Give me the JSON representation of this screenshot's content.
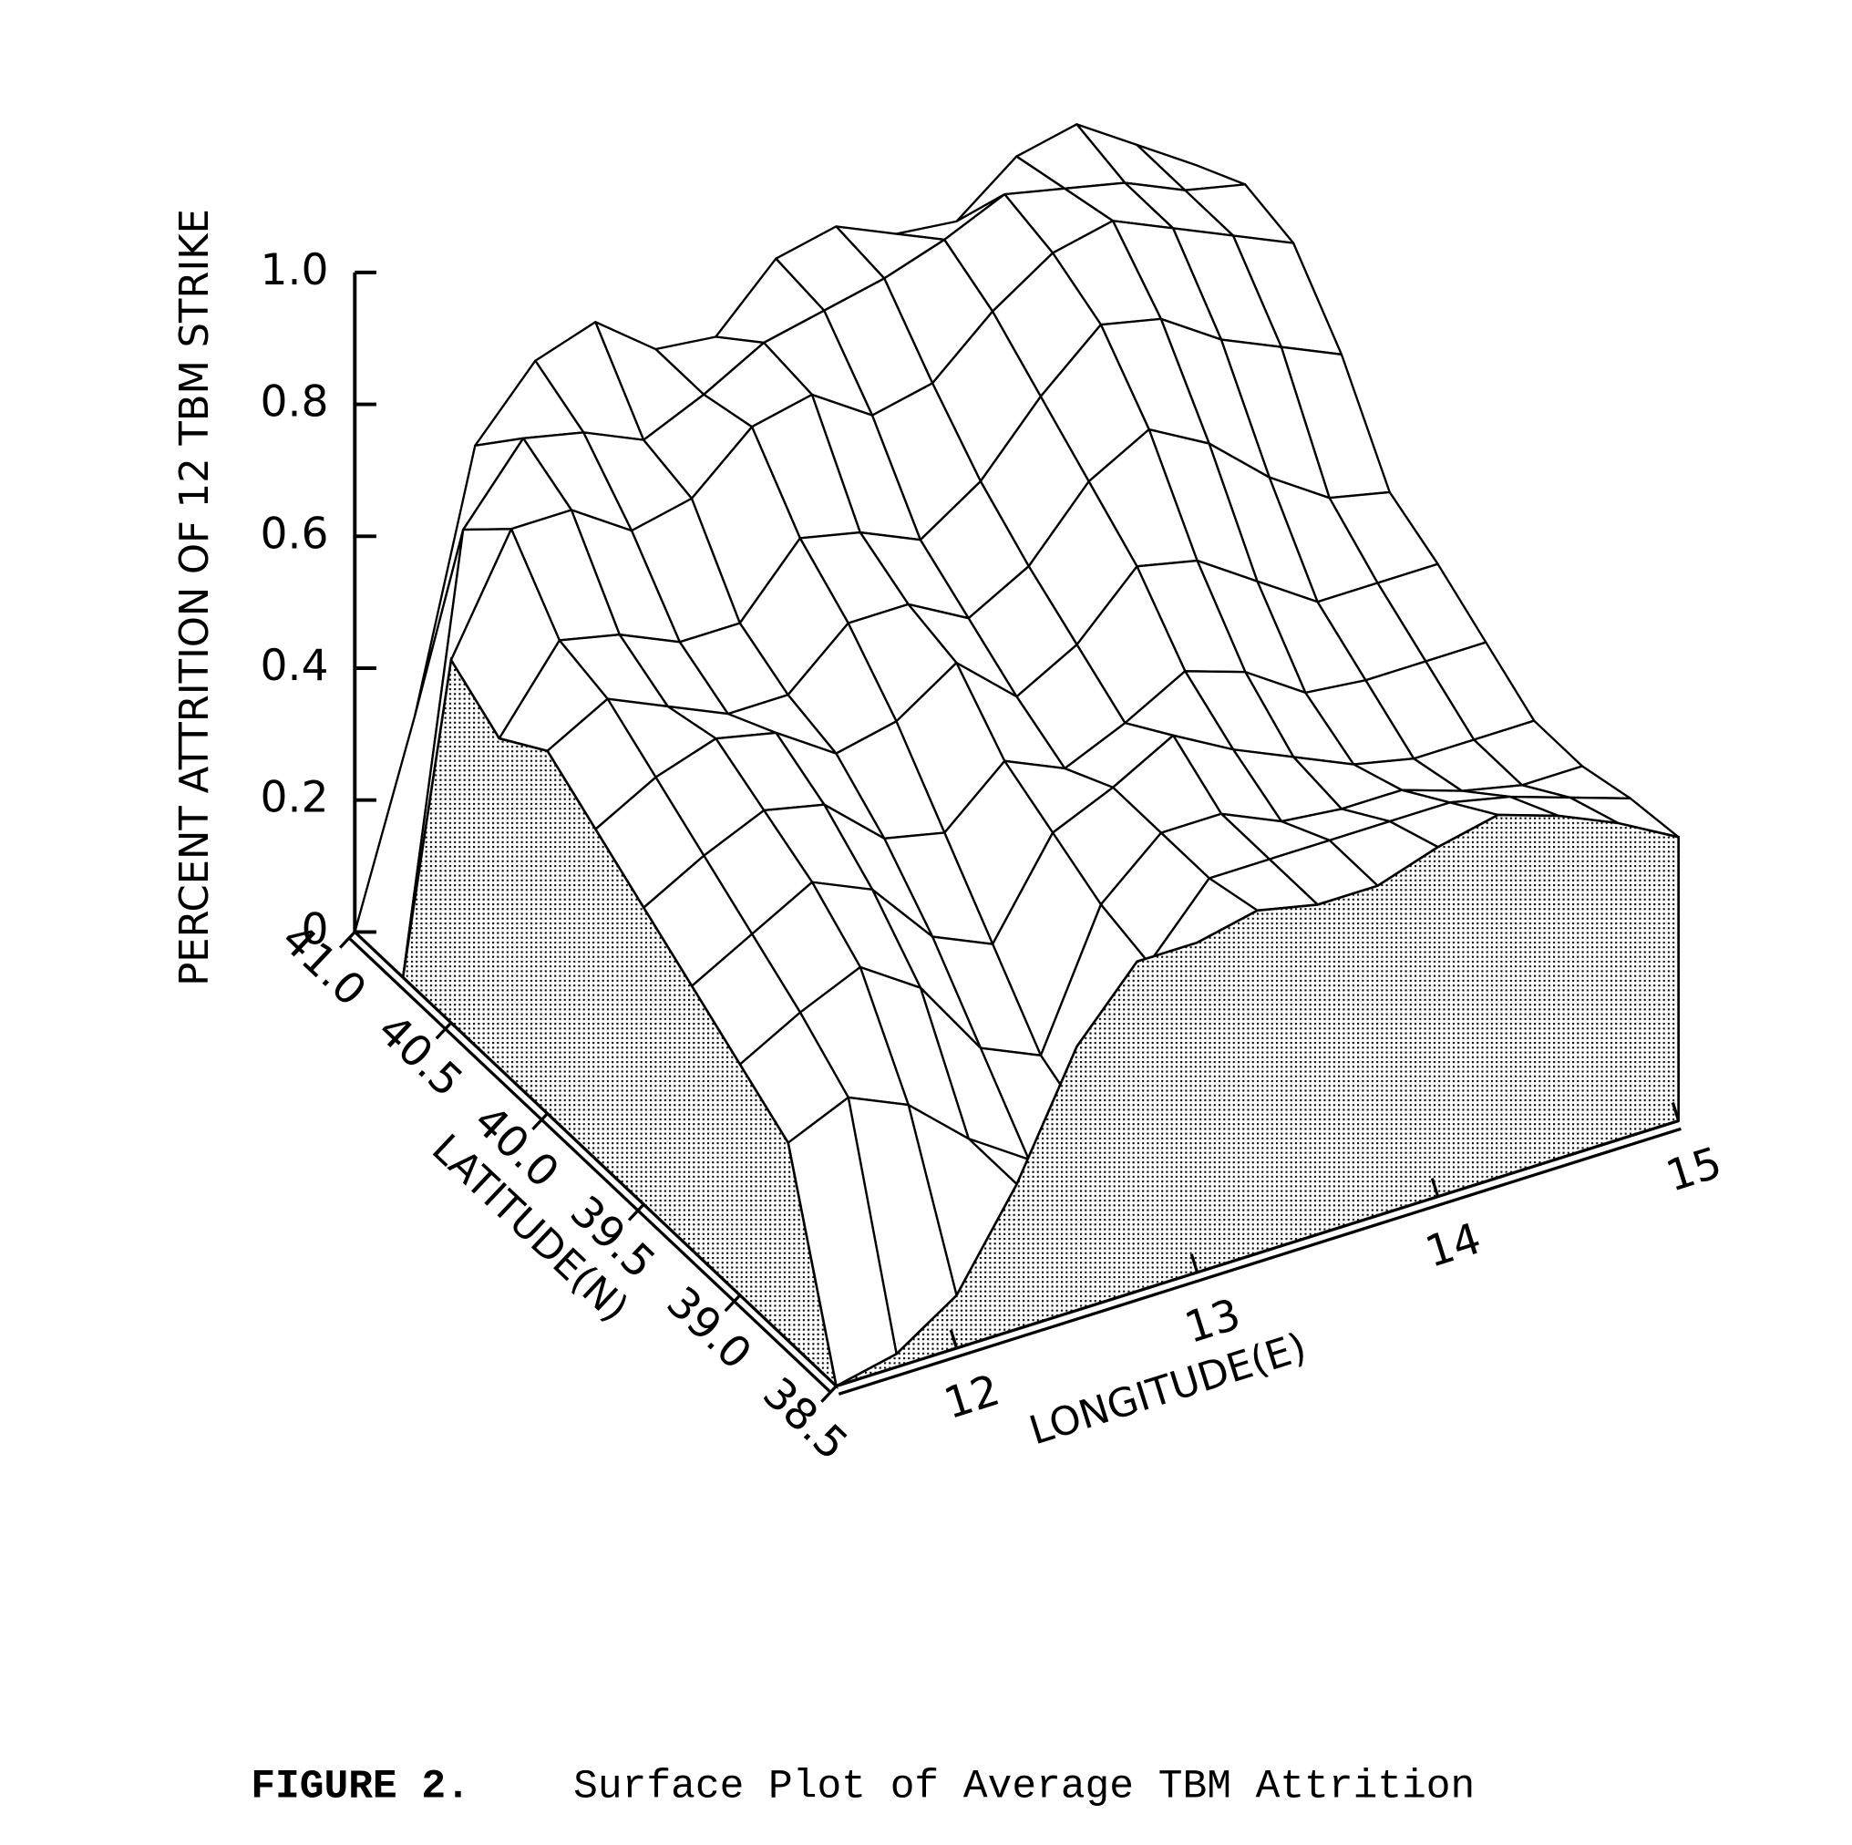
{
  "chart_data": {
    "type": "surface",
    "zlabel": "PERCENT ATTRITION OF 12 TBM STRIKE",
    "ylabel": "LATITUDE(N)",
    "xlabel": "LONGITUDE(E)",
    "caption_label": "FIGURE 2.",
    "caption": "Surface Plot of Average TBM Attrition",
    "zlim": [
      0,
      1
    ],
    "zticks": [
      0,
      0.2,
      0.4,
      0.6,
      0.8,
      {
        "value": 1,
        "label": "1.0"
      }
    ],
    "ylim": [
      38.5,
      41
    ],
    "yticks": [
      {
        "value": 41,
        "label": "41.0"
      },
      40.5,
      {
        "value": 40,
        "label": "40.0"
      },
      39.5,
      {
        "value": 39,
        "label": "39.0"
      },
      38.5
    ],
    "xlim": [
      11.5,
      15
    ],
    "xticks": [
      12,
      13,
      14,
      15
    ],
    "y": [
      41,
      40.75,
      40.5,
      40.25,
      40,
      39.75,
      39.5,
      39.25,
      39,
      38.75,
      38.5
    ],
    "x": [
      11.5,
      11.75,
      12,
      12.25,
      12.5,
      12.75,
      13,
      13.25,
      13.5,
      13.75,
      14,
      14.25,
      14.5,
      14.75,
      15
    ],
    "values": [
      [
        0,
        0.3,
        0.68,
        0.78,
        0.81,
        0.74,
        0.73,
        0.82,
        0.84,
        0.8,
        0.79,
        0.86,
        0.88,
        0.82,
        0.76
      ],
      [
        0,
        0.65,
        0.76,
        0.74,
        0.7,
        0.74,
        0.79,
        0.81,
        0.83,
        0.86,
        0.9,
        0.88,
        0.86,
        0.82,
        0.8
      ],
      [
        0.55,
        0.72,
        0.72,
        0.66,
        0.68,
        0.76,
        0.78,
        0.72,
        0.74,
        0.82,
        0.88,
        0.9,
        0.86,
        0.82,
        0.78
      ],
      [
        0.5,
        0.62,
        0.6,
        0.56,
        0.56,
        0.66,
        0.64,
        0.6,
        0.66,
        0.76,
        0.84,
        0.82,
        0.76,
        0.72,
        0.68
      ],
      [
        0.55,
        0.6,
        0.56,
        0.52,
        0.52,
        0.6,
        0.6,
        0.55,
        0.6,
        0.7,
        0.75,
        0.7,
        0.62,
        0.56,
        0.54
      ],
      [
        0.5,
        0.55,
        0.58,
        0.56,
        0.5,
        0.52,
        0.58,
        0.5,
        0.55,
        0.64,
        0.62,
        0.56,
        0.5,
        0.5,
        0.5
      ],
      [
        0.45,
        0.5,
        0.54,
        0.52,
        0.44,
        0.42,
        0.5,
        0.46,
        0.5,
        0.55,
        0.52,
        0.46,
        0.45,
        0.45,
        0.45
      ],
      [
        0.4,
        0.45,
        0.5,
        0.46,
        0.36,
        0.32,
        0.46,
        0.5,
        0.55,
        0.5,
        0.46,
        0.42,
        0.4,
        0.4,
        0.4
      ],
      [
        0.35,
        0.4,
        0.44,
        0.38,
        0.26,
        0.22,
        0.42,
        0.5,
        0.5,
        0.46,
        0.45,
        0.45,
        0.42,
        0.4,
        0.4
      ],
      [
        0.3,
        0.34,
        0.3,
        0.22,
        0.16,
        0.18,
        0.4,
        0.5,
        0.5,
        0.5,
        0.5,
        0.5,
        0.48,
        0.45,
        0.42
      ],
      [
        0,
        0.02,
        0.08,
        0.22,
        0.4,
        0.5,
        0.5,
        0.52,
        0.5,
        0.5,
        0.53,
        0.55,
        0.52,
        0.48,
        0.43
      ]
    ]
  }
}
